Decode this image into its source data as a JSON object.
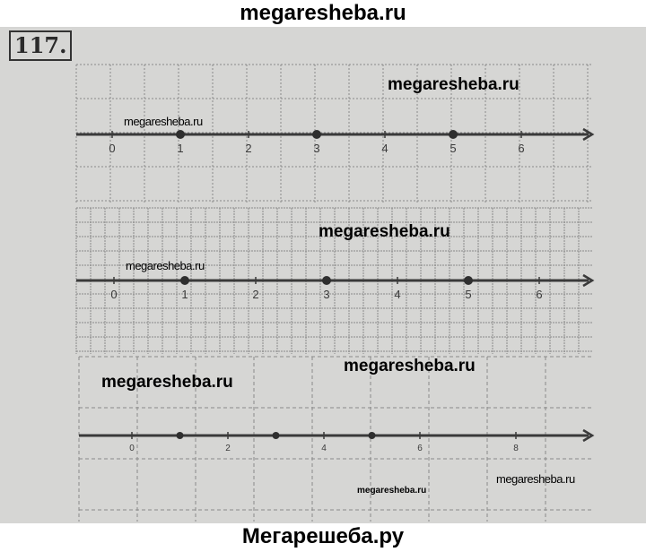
{
  "header": {
    "site": "megaresheba.ru"
  },
  "footer": {
    "site": "Мегарешеба.ру"
  },
  "exercise": {
    "number": "117."
  },
  "watermarks": [
    "megaresheba.ru",
    "megaresheba.ru",
    "megaresheba.ru",
    "megaresheba.ru",
    "megaresheba.ru",
    "megaresheba.ru",
    "megaresheba.ru",
    "megaresheba.ru"
  ],
  "number_lines": [
    {
      "tick_labels": [
        "0",
        "1",
        "2",
        "3",
        "4",
        "5",
        "6"
      ],
      "marked_points": [
        1,
        3,
        5
      ]
    },
    {
      "tick_labels": [
        "0",
        "1",
        "2",
        "3",
        "4",
        "5",
        "6"
      ],
      "marked_points": [
        1,
        3,
        5
      ]
    },
    {
      "tick_labels": [
        "0",
        "2",
        "4",
        "6",
        "8"
      ],
      "marked_points": [
        1,
        3,
        5
      ]
    }
  ],
  "colors": {
    "paper": "#d6d6d4",
    "ink": "#3a3a3a",
    "grid": "#8a8a8a"
  }
}
